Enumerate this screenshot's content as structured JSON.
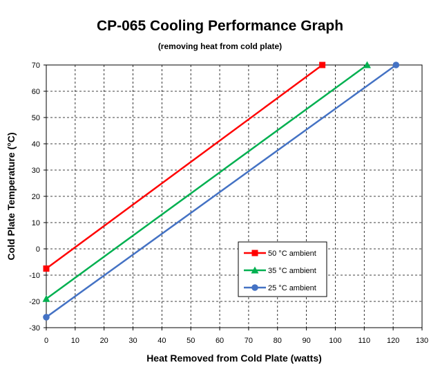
{
  "chart_data": {
    "type": "line",
    "title": "CP-065 Cooling Performance Graph",
    "subtitle": "(removing heat from cold plate)",
    "xlabel": "Heat Removed from Cold Plate (watts)",
    "ylabel": "Cold Plate Temperature (°C)",
    "xlim": [
      0,
      130
    ],
    "ylim": [
      -30,
      70
    ],
    "xticks": [
      0,
      10,
      20,
      30,
      40,
      50,
      60,
      70,
      80,
      90,
      100,
      110,
      120,
      130
    ],
    "yticks": [
      -30,
      -20,
      -10,
      0,
      10,
      20,
      30,
      40,
      50,
      60,
      70
    ],
    "grid": true,
    "legend_position": "lower-right",
    "series": [
      {
        "name": "50 °C ambient",
        "color": "#ff0000",
        "marker": "square",
        "x": [
          0,
          95.5
        ],
        "y": [
          -7.5,
          70
        ]
      },
      {
        "name": "35 °C ambient",
        "color": "#00b050",
        "marker": "triangle",
        "x": [
          0,
          111
        ],
        "y": [
          -19,
          70
        ]
      },
      {
        "name": "25 °C ambient",
        "color": "#4472c4",
        "marker": "circle",
        "x": [
          0,
          121
        ],
        "y": [
          -26,
          70
        ]
      }
    ]
  }
}
